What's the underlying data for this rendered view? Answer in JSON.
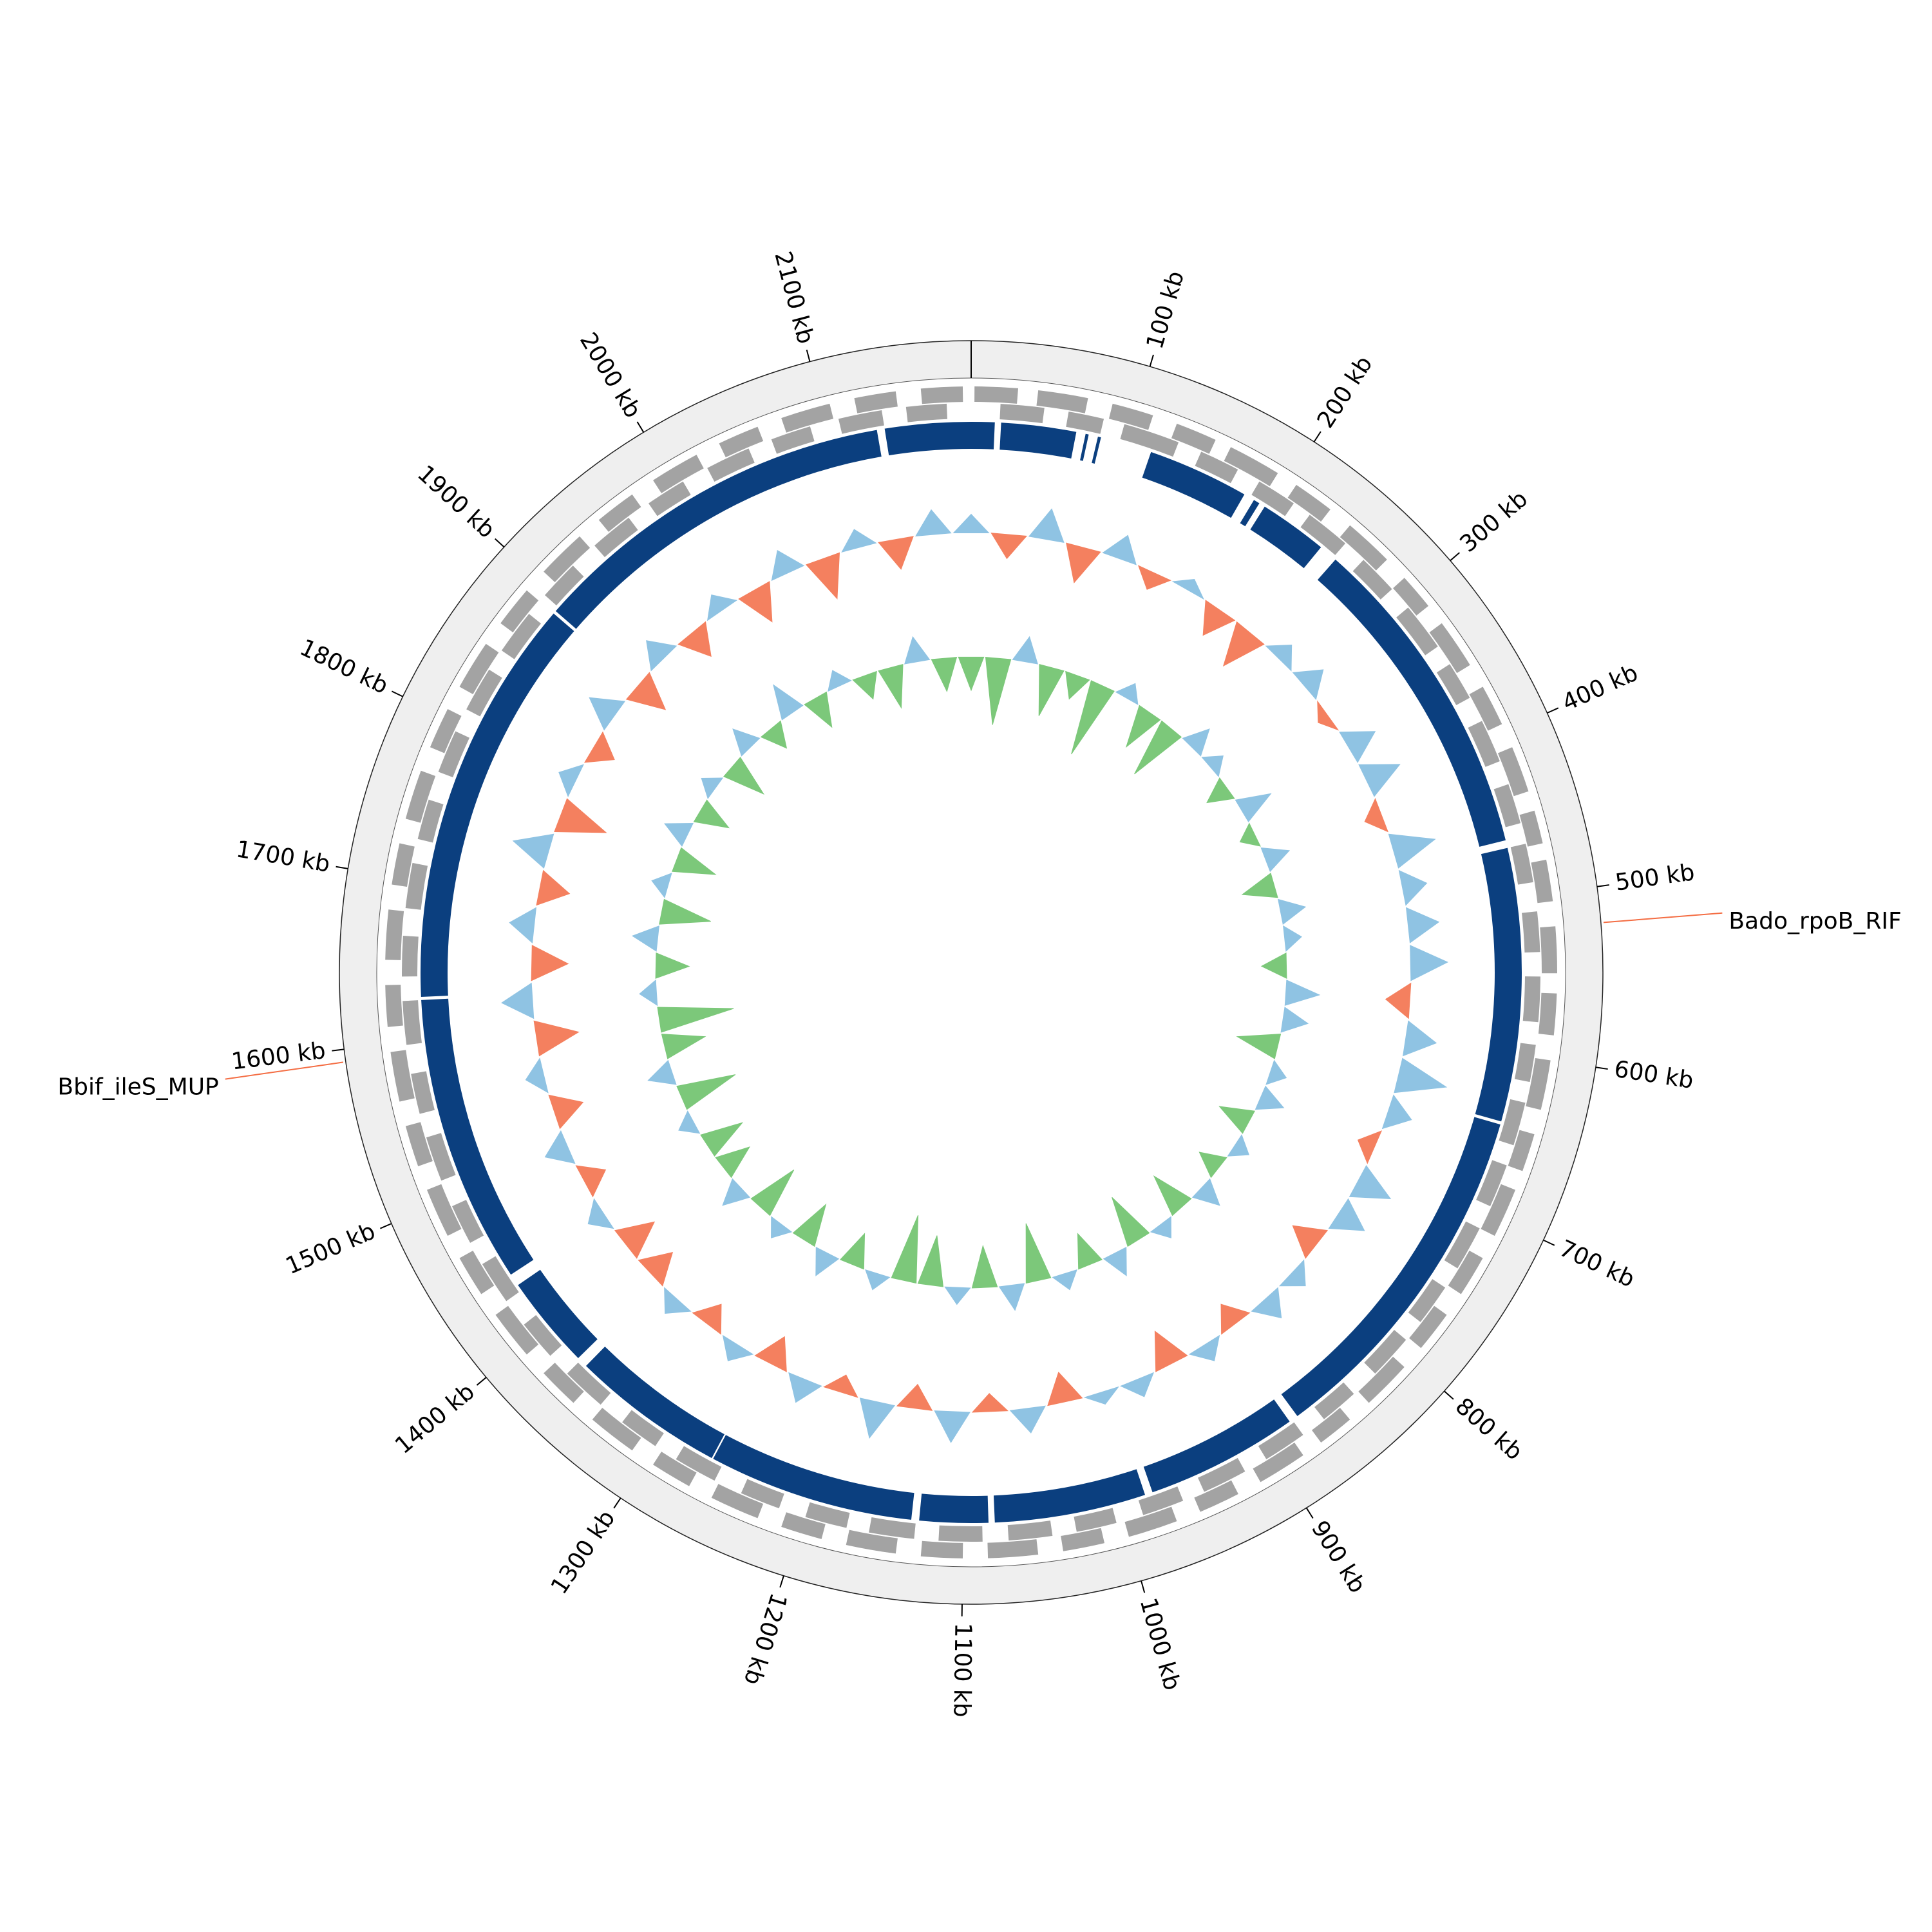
{
  "chart_data": {
    "type": "circos",
    "xlim": [
      0,
      2190
    ],
    "xticks": [
      {
        "value": 100,
        "label": "100 kb"
      },
      {
        "value": 200,
        "label": "200 kb"
      },
      {
        "value": 300,
        "label": "300 kb"
      },
      {
        "value": 400,
        "label": "400 kb"
      },
      {
        "value": 500,
        "label": "500 kb"
      },
      {
        "value": 600,
        "label": "600 kb"
      },
      {
        "value": 700,
        "label": "700 kb"
      },
      {
        "value": 800,
        "label": "800 kb"
      },
      {
        "value": 900,
        "label": "900 kb"
      },
      {
        "value": 1000,
        "label": "1000 kb"
      },
      {
        "value": 1100,
        "label": "1100 kb"
      },
      {
        "value": 1200,
        "label": "1200 kb"
      },
      {
        "value": 1300,
        "label": "1300 kb"
      },
      {
        "value": 1400,
        "label": "1400 kb"
      },
      {
        "value": 1500,
        "label": "1500 kb"
      },
      {
        "value": 1600,
        "label": "1600 kb"
      },
      {
        "value": 1700,
        "label": "1700 kb"
      },
      {
        "value": 1800,
        "label": "1800 kb"
      },
      {
        "value": 1900,
        "label": "1900 kb"
      },
      {
        "value": 2000,
        "label": "2000 kb"
      },
      {
        "value": 2100,
        "label": "2100 kb"
      }
    ],
    "genes": {
      "color": "#a3a3a3",
      "forward": [
        [
          2,
          28
        ],
        [
          40,
          70
        ],
        [
          85,
          110
        ],
        [
          125,
          150
        ],
        [
          160,
          192
        ],
        [
          205,
          230
        ],
        [
          245,
          275
        ],
        [
          290,
          312
        ],
        [
          325,
          355
        ],
        [
          370,
          395
        ],
        [
          410,
          438
        ],
        [
          450,
          470
        ],
        [
          480,
          505
        ],
        [
          520,
          548
        ],
        [
          560,
          585
        ],
        [
          600,
          630
        ],
        [
          645,
          668
        ],
        [
          680,
          710
        ],
        [
          725,
          750
        ],
        [
          765,
          790
        ],
        [
          805,
          835
        ],
        [
          850,
          872
        ],
        [
          885,
          915
        ],
        [
          930,
          955
        ],
        [
          970,
          1000
        ],
        [
          1015,
          1040
        ],
        [
          1055,
          1085
        ],
        [
          1100,
          1125
        ],
        [
          1140,
          1170
        ],
        [
          1185,
          1210
        ],
        [
          1225,
          1255
        ],
        [
          1270,
          1295
        ],
        [
          1310,
          1340
        ],
        [
          1355,
          1380
        ],
        [
          1395,
          1425
        ],
        [
          1440,
          1465
        ],
        [
          1480,
          1510
        ],
        [
          1525,
          1550
        ],
        [
          1565,
          1595
        ],
        [
          1610,
          1635
        ],
        [
          1650,
          1680
        ],
        [
          1695,
          1720
        ],
        [
          1735,
          1765
        ],
        [
          1780,
          1805
        ],
        [
          1820,
          1850
        ],
        [
          1865,
          1890
        ],
        [
          1905,
          1935
        ],
        [
          1950,
          1975
        ],
        [
          1990,
          2020
        ],
        [
          2035,
          2060
        ],
        [
          2075,
          2105
        ],
        [
          2120,
          2145
        ],
        [
          2160,
          2185
        ]
      ],
      "reverse": [
        [
          18,
          45
        ],
        [
          60,
          82
        ],
        [
          95,
          130
        ],
        [
          145,
          170
        ],
        [
          185,
          210
        ],
        [
          222,
          250
        ],
        [
          265,
          290
        ],
        [
          305,
          335
        ],
        [
          348,
          372
        ],
        [
          388,
          415
        ],
        [
          430,
          455
        ],
        [
          468,
          492
        ],
        [
          510,
          535
        ],
        [
          550,
          578
        ],
        [
          592,
          615
        ],
        [
          628,
          655
        ],
        [
          668,
          695
        ],
        [
          710,
          738
        ],
        [
          752,
          778
        ],
        [
          792,
          820
        ],
        [
          838,
          862
        ],
        [
          878,
          905
        ],
        [
          920,
          948
        ],
        [
          962,
          988
        ],
        [
          1005,
          1030
        ],
        [
          1045,
          1072
        ],
        [
          1088,
          1115
        ],
        [
          1130,
          1158
        ],
        [
          1172,
          1198
        ],
        [
          1215,
          1240
        ],
        [
          1258,
          1285
        ],
        [
          1300,
          1325
        ],
        [
          1342,
          1370
        ],
        [
          1385,
          1410
        ],
        [
          1428,
          1455
        ],
        [
          1470,
          1495
        ],
        [
          1512,
          1540
        ],
        [
          1555,
          1580
        ],
        [
          1598,
          1625
        ],
        [
          1640,
          1665
        ],
        [
          1682,
          1710
        ],
        [
          1725,
          1750
        ],
        [
          1768,
          1795
        ],
        [
          1810,
          1838
        ],
        [
          1852,
          1880
        ],
        [
          1895,
          1920
        ],
        [
          1938,
          1965
        ],
        [
          1980,
          2005
        ],
        [
          2022,
          2050
        ],
        [
          2065,
          2090
        ],
        [
          2108,
          2135
        ],
        [
          2150,
          2175
        ]
      ]
    },
    "contigs": {
      "color": "#0b3f7f",
      "x": [
        [
          0,
          15
        ],
        [
          19,
          67
        ],
        [
          73,
          75
        ],
        [
          81,
          83
        ],
        [
          116,
          181
        ],
        [
          188,
          192
        ],
        [
          196,
          240
        ],
        [
          252,
          463
        ],
        [
          468,
          643
        ],
        [
          645,
          874
        ],
        [
          880,
          978
        ],
        [
          983,
          1080
        ],
        [
          1084,
          1128
        ],
        [
          1133,
          1265
        ],
        [
          1266,
          1365
        ],
        [
          1372,
          1432
        ],
        [
          1440,
          1625
        ],
        [
          1627,
          1890
        ],
        [
          1892,
          2130
        ],
        [
          2135,
          2190
        ]
      ]
    },
    "positions": [
      0,
      30,
      60,
      90,
      120,
      150,
      180,
      210,
      240,
      270,
      300,
      330,
      360,
      390,
      420,
      450,
      480,
      510,
      540,
      570,
      600,
      630,
      660,
      690,
      720,
      750,
      780,
      810,
      840,
      870,
      900,
      930,
      960,
      990,
      1020,
      1050,
      1080,
      1110,
      1140,
      1170,
      1200,
      1230,
      1260,
      1290,
      1320,
      1350,
      1380,
      1410,
      1440,
      1470,
      1500,
      1530,
      1560,
      1590,
      1620,
      1650,
      1680,
      1710,
      1740,
      1770,
      1800,
      1830,
      1860,
      1890,
      1920,
      1950,
      1980,
      2010,
      2040,
      2070,
      2100,
      2130,
      2160
    ],
    "gc_content": {
      "positive_color": "#8fc3e3",
      "negative_color": "#f4805f",
      "ylim": [
        -1,
        1
      ],
      "values": [
        0.3,
        -0.4,
        0.5,
        -0.6,
        0.4,
        -0.3,
        0.2,
        -0.5,
        -0.7,
        0.3,
        0.4,
        -0.2,
        0.5,
        0.6,
        -0.3,
        0.7,
        0.4,
        0.5,
        0.6,
        -0.4,
        0.5,
        0.8,
        0.4,
        -0.3,
        0.6,
        0.5,
        -0.5,
        0.3,
        0.4,
        -0.4,
        0.3,
        -0.6,
        0.3,
        0.2,
        -0.5,
        0.4,
        -0.3,
        0.5,
        -0.4,
        0.6,
        -0.3,
        0.4,
        -0.5,
        0.3,
        -0.4,
        0.3,
        -0.5,
        -0.6,
        0.3,
        -0.4,
        0.4,
        -0.5,
        0.3,
        -0.7,
        0.5,
        -0.6,
        0.4,
        -0.5,
        0.6,
        -0.8,
        0.3,
        -0.4,
        0.5,
        -0.6,
        0.4,
        -0.5,
        0.3,
        -0.6,
        0.4,
        -0.7,
        0.3,
        -0.5,
        0.4
      ]
    },
    "gc_skew": {
      "positive_color": "#8fc3e3",
      "negative_color": "#7cc87a",
      "ylim": [
        -1,
        1
      ],
      "values": [
        -0.4,
        -0.8,
        0.3,
        -0.6,
        -0.3,
        -0.9,
        0.2,
        -0.5,
        -0.7,
        0.3,
        0.2,
        -0.3,
        0.4,
        -0.2,
        0.3,
        -0.4,
        0.3,
        0.2,
        -0.3,
        0.4,
        0.3,
        -0.5,
        0.2,
        0.3,
        -0.4,
        0.2,
        -0.3,
        0.3,
        -0.5,
        0.2,
        -0.6,
        0.3,
        -0.4,
        0.2,
        -0.7,
        0.3,
        -0.5,
        0.2,
        -0.6,
        -0.8,
        0.2,
        -0.4,
        0.3,
        -0.5,
        0.2,
        -0.6,
        0.3,
        -0.4,
        -0.5,
        0.2,
        -0.7,
        0.3,
        -0.5,
        -0.9,
        0.2,
        -0.4,
        0.3,
        -0.6,
        0.2,
        -0.5,
        0.3,
        -0.4,
        0.2,
        -0.5,
        0.3,
        -0.3,
        0.4,
        -0.4,
        0.2,
        -0.3,
        -0.5,
        0.3,
        -0.4
      ]
    },
    "annotations": [
      {
        "label": "Bado_rpoB_RIF",
        "position": 520,
        "color": "#2166ac",
        "line_color": "#f46d43"
      },
      {
        "label": "Bbif_ileS_MUP",
        "position": 1593,
        "color": "#2166ac",
        "line_color": "#f46d43"
      }
    ]
  }
}
